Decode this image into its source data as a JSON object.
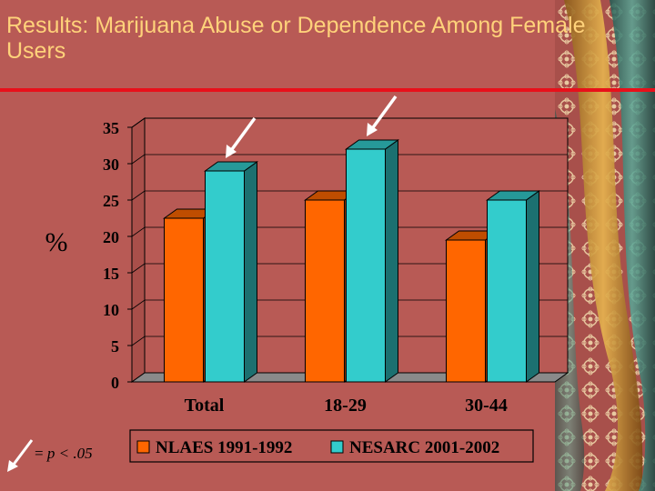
{
  "slide": {
    "title": "Results:  Marijuana Abuse or Dependence  Among Female Users",
    "y_unit": "%",
    "footnote_prefix": "= ",
    "footnote_stat": "p < .05",
    "significance_marker": "white-arrow-icon",
    "colors": {
      "background": "#b85a55",
      "title": "#ffd27a",
      "rule": "#e8101a",
      "plot_wall": "#b85a55",
      "floor": "#8a8a8a"
    }
  },
  "chart_data": {
    "type": "bar",
    "title": "",
    "xlabel": "",
    "ylabel": "%",
    "ylim": [
      0,
      35
    ],
    "yticks": [
      0,
      5,
      10,
      15,
      20,
      25,
      30,
      35
    ],
    "grid": true,
    "legend": "bottom",
    "categories": [
      "Total",
      "18-29",
      "30-44"
    ],
    "series": [
      {
        "name": "NLAES 1991-1992",
        "values": [
          22.5,
          25,
          19.5
        ],
        "color": "#ff6600"
      },
      {
        "name": "NESARC 2001-2002",
        "values": [
          29,
          32,
          25
        ],
        "color": "#33cccc"
      }
    ],
    "significance_arrows": [
      "Total",
      "18-29"
    ]
  }
}
